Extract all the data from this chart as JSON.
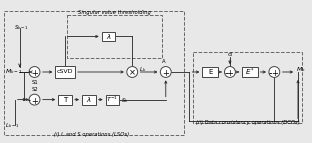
{
  "bg_color": "#e8e8e8",
  "box_color": "#ffffff",
  "box_edge": "#444444",
  "line_color": "#222222",
  "dashed_box_color": "#666666",
  "lso_label": "(i) L and S operations (LSOs)",
  "dco_label": "(ii) Data consistency operations (DCOs)",
  "svt_label": "Singular value thresholding",
  "figsize": [
    3.12,
    1.43
  ],
  "dpi": 100
}
